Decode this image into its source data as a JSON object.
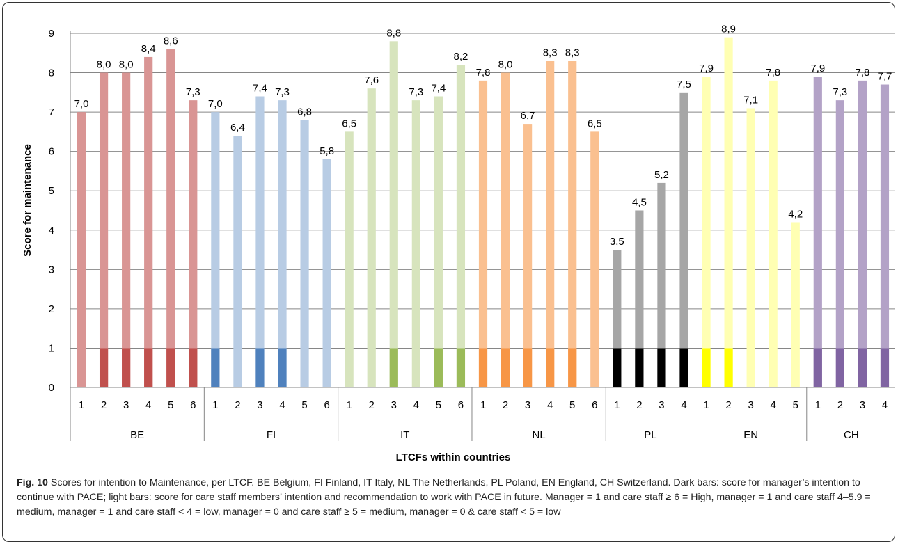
{
  "chart_data": {
    "type": "bar",
    "xlabel": "LTCFs within countries",
    "ylabel": "Score for maintenance",
    "ylim": [
      0,
      9
    ],
    "y_ticks": [
      "0",
      "1",
      "2",
      "3",
      "4",
      "5",
      "6",
      "7",
      "8",
      "9"
    ],
    "grid": true,
    "legend": "none",
    "groups": [
      {
        "name": "BE",
        "categories": [
          "1",
          "2",
          "3",
          "4",
          "5",
          "6"
        ],
        "values": [
          7.0,
          8.0,
          8.0,
          8.4,
          8.6,
          7.3
        ],
        "labels": [
          "7,0",
          "8,0",
          "8,0",
          "8,4",
          "8,6",
          "7,3"
        ],
        "manager": [
          0,
          1,
          1,
          1,
          1,
          1
        ],
        "light_color": "#D99594",
        "dark_color": "#C0504D"
      },
      {
        "name": "FI",
        "categories": [
          "1",
          "2",
          "3",
          "4",
          "5",
          "6"
        ],
        "values": [
          7.0,
          6.4,
          7.4,
          7.3,
          6.8,
          5.8
        ],
        "labels": [
          "7,0",
          "6,4",
          "7,4",
          "7,3",
          "6,8",
          "5,8"
        ],
        "manager": [
          1,
          0,
          1,
          1,
          0,
          0
        ],
        "light_color": "#B8CCE4",
        "dark_color": "#4F81BD"
      },
      {
        "name": "IT",
        "categories": [
          "1",
          "2",
          "3",
          "4",
          "5",
          "6"
        ],
        "values": [
          6.5,
          7.6,
          8.8,
          7.3,
          7.4,
          8.2
        ],
        "labels": [
          "6,5",
          "7,6",
          "8,8",
          "7,3",
          "7,4",
          "8,2"
        ],
        "manager": [
          0,
          0,
          1,
          0,
          1,
          1
        ],
        "light_color": "#D7E4BD",
        "dark_color": "#9BBB59"
      },
      {
        "name": "NL",
        "categories": [
          "1",
          "2",
          "3",
          "4",
          "5",
          "6"
        ],
        "values": [
          7.8,
          8.0,
          6.7,
          8.3,
          8.3,
          6.5
        ],
        "labels": [
          "7,8",
          "8,0",
          "6,7",
          "8,3",
          "8,3",
          "6,5"
        ],
        "manager": [
          1,
          1,
          1,
          1,
          1,
          0
        ],
        "light_color": "#FAC090",
        "dark_color": "#F79646"
      },
      {
        "name": "PL",
        "categories": [
          "1",
          "2",
          "3",
          "4"
        ],
        "values": [
          3.5,
          4.5,
          5.2,
          7.5
        ],
        "labels": [
          "3,5",
          "4,5",
          "5,2",
          "7,5"
        ],
        "manager": [
          1,
          1,
          1,
          1
        ],
        "light_color": "#A6A6A6",
        "dark_color": "#000000"
      },
      {
        "name": "EN",
        "categories": [
          "1",
          "2",
          "3",
          "4",
          "5"
        ],
        "values": [
          7.9,
          8.9,
          7.1,
          7.8,
          4.2
        ],
        "labels": [
          "7,9",
          "8,9",
          "7,1",
          "7,8",
          "4,2"
        ],
        "manager": [
          1,
          1,
          0,
          0,
          0
        ],
        "light_color": "#FFFFB3",
        "dark_color": "#FFFF00"
      },
      {
        "name": "CH",
        "categories": [
          "1",
          "2",
          "3",
          "4"
        ],
        "values": [
          7.9,
          7.3,
          7.8,
          7.7
        ],
        "labels": [
          "7,9",
          "7,3",
          "7,8",
          "7,7"
        ],
        "manager": [
          1,
          1,
          1,
          1
        ],
        "light_color": "#B3A2C7",
        "dark_color": "#8064A2"
      }
    ]
  },
  "caption": {
    "label": "Fig. 10",
    "text": " Scores for intention to Maintenance, per LTCF. BE Belgium, FI Finland, IT Italy, NL The Netherlands, PL Poland, EN England, CH Switzerland. Dark bars: score for manager’s intention to continue with PACE; light bars: score for care staff members’ intention and recommendation to work with PACE in future. Manager = 1 and care staff ≥ 6 = High, manager = 1 and care staff 4–5.9 = medium, manager = 1 and care staff < 4 = low, manager = 0 and care staff ≥ 5 = medium, manager = 0 & care staff < 5 = low"
  }
}
